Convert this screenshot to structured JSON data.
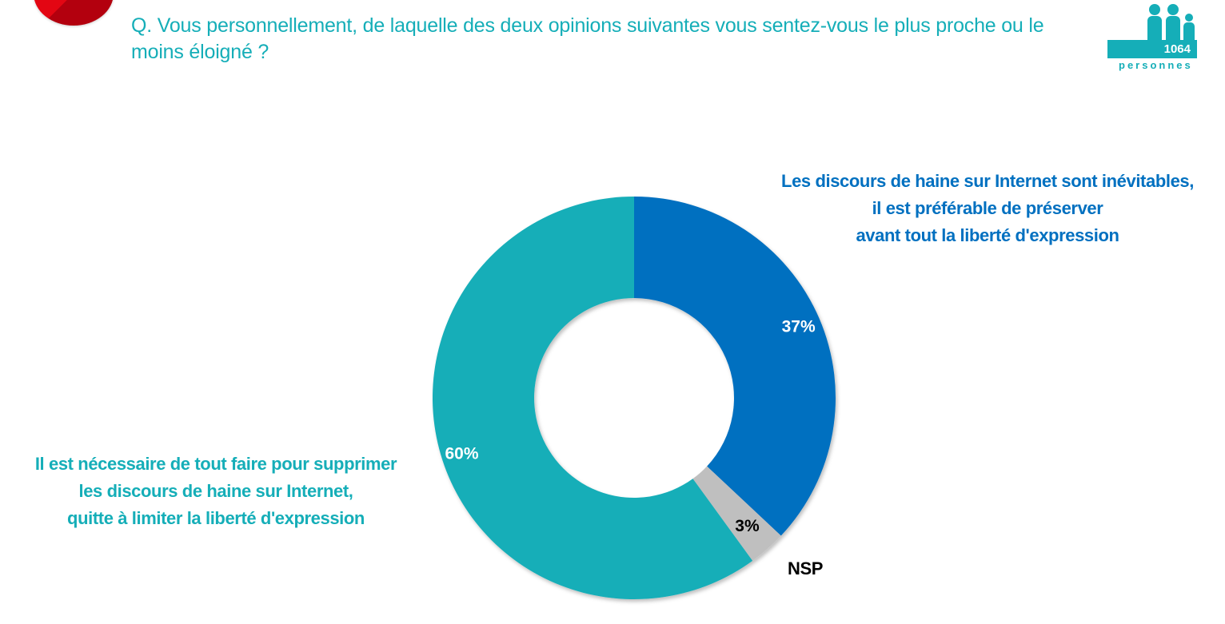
{
  "question": "Q. Vous personnellement, de laquelle des deux opinions suivantes vous sentez-vous le plus proche ou le moins éloigné ?",
  "sample": {
    "count": "1064",
    "unit": "personnes",
    "icon": "people-icon"
  },
  "logo": "brand-logo",
  "colors": {
    "accent": "#15aeb8",
    "blue": "#0070c0",
    "gray": "#bfbfbf",
    "brand_red": "#e30613"
  },
  "chart_data": {
    "type": "pie",
    "variant": "donut",
    "title": "Q. Vous personnellement, de laquelle des deux opinions suivantes vous sentez-vous le plus proche ou le moins éloigné ?",
    "start_angle": "12 o'clock, clockwise",
    "slices": [
      {
        "label": "Les discours de haine sur Internet sont inévitables, il est préférable de préserver avant tout la liberté d'expression",
        "label_lines": [
          "Les discours de haine sur Internet sont inévitables,",
          "il est préférable de préserver",
          "avant tout la liberté d'expression"
        ],
        "value": 37,
        "value_label": "37%",
        "color": "#0070c0",
        "value_label_color": "#ffffff"
      },
      {
        "label": "NSP",
        "label_lines": [
          "NSP"
        ],
        "value": 3,
        "value_label": "3%",
        "color": "#bfbfbf",
        "value_label_color": "#000000"
      },
      {
        "label": "Il est nécessaire de tout faire pour supprimer les discours de haine sur Internet, quitte à limiter la liberté d'expression",
        "label_lines": [
          "Il est nécessaire de tout faire pour supprimer",
          "les discours de haine sur Internet,",
          "quitte à limiter la liberté d'expression"
        ],
        "value": 60,
        "value_label": "60%",
        "color": "#15aeb8",
        "value_label_color": "#ffffff"
      }
    ],
    "legend": "none (category labels placed next to slices)"
  }
}
